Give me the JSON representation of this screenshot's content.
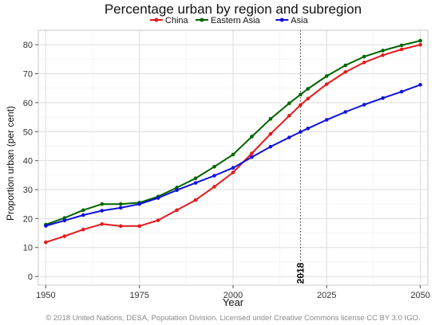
{
  "chart_data": {
    "type": "line",
    "title": "Percentage urban by region and subregion",
    "xlabel": "Year",
    "ylabel": "Proportion urban (per cent)",
    "xlim": [
      1948,
      2052
    ],
    "ylim": [
      -3,
      85
    ],
    "x_ticks": [
      1950,
      1975,
      2000,
      2025,
      2050
    ],
    "y_ticks": [
      0,
      10,
      20,
      30,
      40,
      50,
      60,
      70,
      80
    ],
    "grid": true,
    "legend_position": "top",
    "x": [
      1950,
      1955,
      1960,
      1965,
      1970,
      1975,
      1980,
      1985,
      1990,
      1995,
      2000,
      2005,
      2010,
      2015,
      2018,
      2020,
      2025,
      2030,
      2035,
      2040,
      2045,
      2050
    ],
    "series": [
      {
        "name": "China",
        "color": "#e41a1c",
        "values": [
          11.8,
          13.9,
          16.2,
          18.1,
          17.4,
          17.4,
          19.4,
          22.9,
          26.4,
          31.0,
          35.9,
          42.5,
          49.2,
          55.5,
          59.2,
          61.4,
          66.4,
          70.6,
          73.9,
          76.4,
          78.4,
          80.0
        ]
      },
      {
        "name": "Eastern Asia",
        "color": "#006400",
        "values": [
          17.9,
          20.2,
          22.9,
          25.0,
          25.0,
          25.5,
          27.6,
          30.7,
          33.9,
          37.9,
          42.1,
          48.3,
          54.4,
          59.8,
          62.8,
          64.8,
          69.2,
          72.9,
          75.9,
          78.0,
          79.8,
          81.4
        ]
      },
      {
        "name": "Asia",
        "color": "#1010dd",
        "values": [
          17.5,
          19.3,
          21.2,
          22.7,
          23.7,
          25.0,
          27.1,
          29.8,
          32.3,
          34.8,
          37.5,
          41.2,
          44.8,
          48.0,
          49.9,
          51.1,
          54.1,
          56.8,
          59.3,
          61.6,
          63.8,
          66.2
        ]
      }
    ],
    "annotations": [
      {
        "x": 2018,
        "label": "2018",
        "style": "dotted-vertical-line"
      }
    ],
    "credit": "© 2018 United Nations, DESA, Population Division. Licensed under Creative Commons license CC BY 3.0 IGO."
  }
}
